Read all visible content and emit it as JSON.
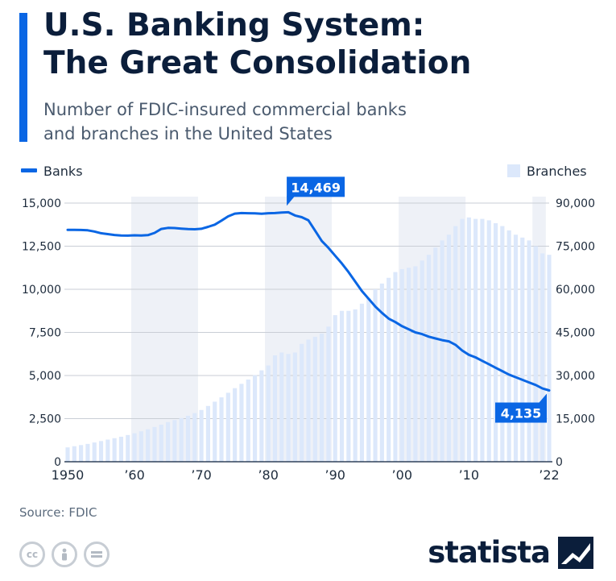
{
  "header": {
    "title_line1": "U.S. Banking System:",
    "title_line2": "The Great Consolidation",
    "subtitle_line1": "Number of FDIC-insured commercial banks",
    "subtitle_line2": "and branches in the United States"
  },
  "footer": {
    "source": "Source: FDIC",
    "brand": "statista",
    "license_icons": [
      "cc-icon",
      "by-icon",
      "nd-icon"
    ]
  },
  "colors": {
    "banks_line": "#0a66e4",
    "branches_bar": "#dce8fb",
    "decade_band": "#eef1f7",
    "title": "#0b1e3b",
    "callout": "#0a66e4"
  },
  "chart_data": {
    "type": "bar",
    "x": [
      1950,
      1951,
      1952,
      1953,
      1954,
      1955,
      1956,
      1957,
      1958,
      1959,
      1960,
      1961,
      1962,
      1963,
      1964,
      1965,
      1966,
      1967,
      1968,
      1969,
      1970,
      1971,
      1972,
      1973,
      1974,
      1975,
      1976,
      1977,
      1978,
      1979,
      1980,
      1981,
      1982,
      1983,
      1984,
      1985,
      1986,
      1987,
      1988,
      1989,
      1990,
      1991,
      1992,
      1993,
      1994,
      1995,
      1996,
      1997,
      1998,
      1999,
      2000,
      2001,
      2002,
      2003,
      2004,
      2005,
      2006,
      2007,
      2008,
      2009,
      2010,
      2011,
      2012,
      2013,
      2014,
      2015,
      2016,
      2017,
      2018,
      2019,
      2020,
      2021,
      2022
    ],
    "x_tick_values": [
      1950,
      1960,
      1970,
      1980,
      1990,
      2000,
      2010,
      2022
    ],
    "x_tick_labels": [
      "1950",
      "’60",
      "’70",
      "’80",
      "’90",
      "’00",
      "’10",
      "’22"
    ],
    "shaded_decades": [
      [
        1960,
        1970
      ],
      [
        1980,
        1990
      ],
      [
        2000,
        2010
      ],
      [
        2020,
        2022
      ]
    ],
    "legend": {
      "left": "Banks",
      "right": "Branches"
    },
    "series": [
      {
        "name": "Banks",
        "type": "line",
        "axis": "left",
        "values": [
          13450,
          13450,
          13440,
          13420,
          13350,
          13250,
          13200,
          13150,
          13120,
          13110,
          13130,
          13120,
          13140,
          13270,
          13500,
          13560,
          13550,
          13520,
          13490,
          13480,
          13510,
          13620,
          13750,
          13980,
          14230,
          14390,
          14420,
          14410,
          14400,
          14380,
          14410,
          14420,
          14450,
          14469,
          14280,
          14180,
          14000,
          13400,
          12800,
          12400,
          11950,
          11500,
          11000,
          10450,
          9900,
          9450,
          9000,
          8630,
          8300,
          8100,
          7860,
          7680,
          7500,
          7400,
          7250,
          7150,
          7050,
          6980,
          6780,
          6450,
          6200,
          6050,
          5850,
          5650,
          5450,
          5250,
          5050,
          4900,
          4750,
          4600,
          4450,
          4250,
          4135
        ]
      },
      {
        "name": "Branches",
        "type": "bar",
        "axis": "right",
        "values": [
          5000,
          5400,
          5800,
          6200,
          6700,
          7200,
          7700,
          8200,
          8700,
          9300,
          9900,
          10600,
          11300,
          12100,
          12900,
          13800,
          14500,
          15200,
          16000,
          16900,
          18000,
          19400,
          20900,
          22400,
          24000,
          25600,
          27100,
          28600,
          30100,
          31800,
          33500,
          37000,
          38000,
          37500,
          38000,
          41000,
          42500,
          43500,
          44600,
          47000,
          51000,
          52500,
          52500,
          53000,
          55000,
          57000,
          60000,
          62000,
          64000,
          66000,
          67000,
          67500,
          68000,
          70000,
          72000,
          74500,
          77000,
          79000,
          82000,
          84500,
          85000,
          84500,
          84500,
          84000,
          83000,
          82000,
          80500,
          79000,
          78000,
          77000,
          75000,
          72500,
          72000
        ]
      }
    ],
    "y_left": {
      "min": 0,
      "max": 15000,
      "ticks": [
        0,
        2500,
        5000,
        7500,
        10000,
        12500,
        15000
      ],
      "tick_labels": [
        "0",
        "2,500",
        "5,000",
        "7,500",
        "10,000",
        "12,500",
        "15,000"
      ]
    },
    "y_right": {
      "min": 0,
      "max": 90000,
      "ticks": [
        0,
        15000,
        30000,
        45000,
        60000,
        75000,
        90000
      ],
      "tick_labels": [
        "0",
        "15,000",
        "30,000",
        "45,000",
        "60,000",
        "75,000",
        "90,000"
      ]
    },
    "annotations": [
      {
        "year": 1983,
        "value": 14469,
        "label": "14,469",
        "position": "above"
      },
      {
        "year": 2022,
        "value": 4135,
        "label": "4,135",
        "position": "below-left"
      }
    ],
    "grid": true
  }
}
